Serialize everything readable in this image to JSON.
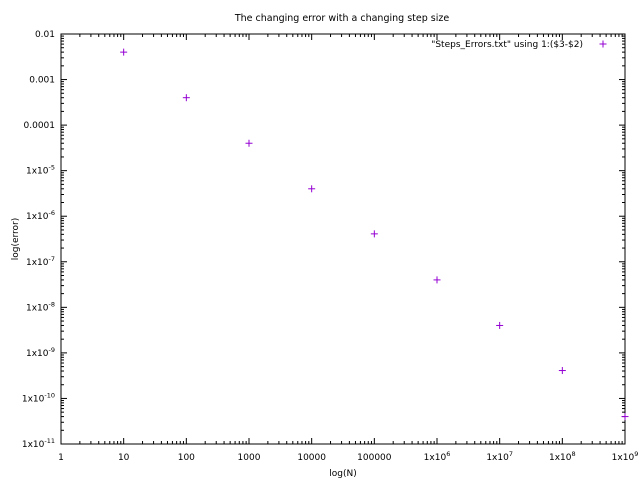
{
  "chart_data": {
    "type": "scatter",
    "title": "The changing error with a changing step size",
    "xlabel": "log(N)",
    "ylabel": "log(error)",
    "x_scale": "log",
    "y_scale": "log",
    "xlim": [
      1,
      1000000000
    ],
    "ylim": [
      1e-11,
      0.01
    ],
    "grid": false,
    "legend_position": "top-right",
    "x_ticks": [
      {
        "value": 1,
        "label": "1",
        "sup": ""
      },
      {
        "value": 10,
        "label": "10",
        "sup": ""
      },
      {
        "value": 100,
        "label": "100",
        "sup": ""
      },
      {
        "value": 1000,
        "label": "1000",
        "sup": ""
      },
      {
        "value": 10000,
        "label": "10000",
        "sup": ""
      },
      {
        "value": 100000,
        "label": "100000",
        "sup": ""
      },
      {
        "value": 1000000,
        "label": "1x10",
        "sup": "6"
      },
      {
        "value": 10000000,
        "label": "1x10",
        "sup": "7"
      },
      {
        "value": 100000000,
        "label": "1x10",
        "sup": "8"
      },
      {
        "value": 1000000000,
        "label": "1x10",
        "sup": "9"
      }
    ],
    "y_ticks": [
      {
        "value": 0.01,
        "label": "0.01",
        "sup": ""
      },
      {
        "value": 0.001,
        "label": "0.001",
        "sup": ""
      },
      {
        "value": 0.0001,
        "label": "0.0001",
        "sup": ""
      },
      {
        "value": 1e-05,
        "label": "1x10",
        "sup": "-5"
      },
      {
        "value": 1e-06,
        "label": "1x10",
        "sup": "-6"
      },
      {
        "value": 1e-07,
        "label": "1x10",
        "sup": "-7"
      },
      {
        "value": 1e-08,
        "label": "1x10",
        "sup": "-8"
      },
      {
        "value": 1e-09,
        "label": "1x10",
        "sup": "-9"
      },
      {
        "value": 1e-10,
        "label": "1x10",
        "sup": "-10"
      },
      {
        "value": 1e-11,
        "label": "1x10",
        "sup": "-11"
      }
    ],
    "series": [
      {
        "name": "\"Steps_Errors.txt\" using 1:($3-$2)",
        "color": "#9400d3",
        "marker": "plus",
        "x": [
          10,
          100,
          1000,
          10000,
          100000,
          1000000,
          10000000,
          100000000,
          1000000000
        ],
        "y": [
          0.004,
          0.0004,
          4e-05,
          4e-06,
          4.1e-07,
          4e-08,
          4e-09,
          4.1e-10,
          4e-11
        ]
      }
    ]
  }
}
